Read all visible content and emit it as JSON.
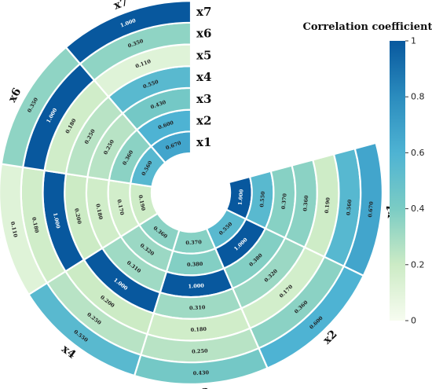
{
  "chart_data": {
    "type": "heatmap",
    "variables": [
      "x1",
      "x2",
      "x3",
      "x4",
      "x5",
      "x6",
      "x7"
    ],
    "matrix": [
      [
        "1.000",
        "0.550",
        "0.370",
        "0.360",
        "0.190",
        "0.560",
        "0.670"
      ],
      [
        "0.550",
        "1.000",
        "0.380",
        "0.320",
        "0.170",
        "0.360",
        "0.600"
      ],
      [
        "0.370",
        "0.380",
        "1.000",
        "0.310",
        "0.180",
        "0.250",
        "0.430"
      ],
      [
        "0.360",
        "0.320",
        "0.310",
        "1.000",
        "0.200",
        "0.250",
        "0.550"
      ],
      [
        "0.190",
        "0.170",
        "0.180",
        "0.200",
        "1.000",
        "0.180",
        "0.110"
      ],
      [
        "0.560",
        "0.360",
        "0.250",
        "0.250",
        "0.180",
        "1.000",
        "0.350"
      ],
      [
        "0.670",
        "0.600",
        "0.430",
        "0.550",
        "0.110",
        "0.350",
        "1.000"
      ]
    ],
    "colorbar": {
      "title": "Correlation coefficient",
      "ticks": [
        "0",
        "0.2",
        "0.4",
        "0.6",
        "0.8",
        "1"
      ],
      "range": [
        0,
        1
      ],
      "colors": [
        "#f7fcf0",
        "#ccebc5",
        "#7bccc4",
        "#4eb3d3",
        "#2b8cbe",
        "#08589e"
      ]
    }
  }
}
